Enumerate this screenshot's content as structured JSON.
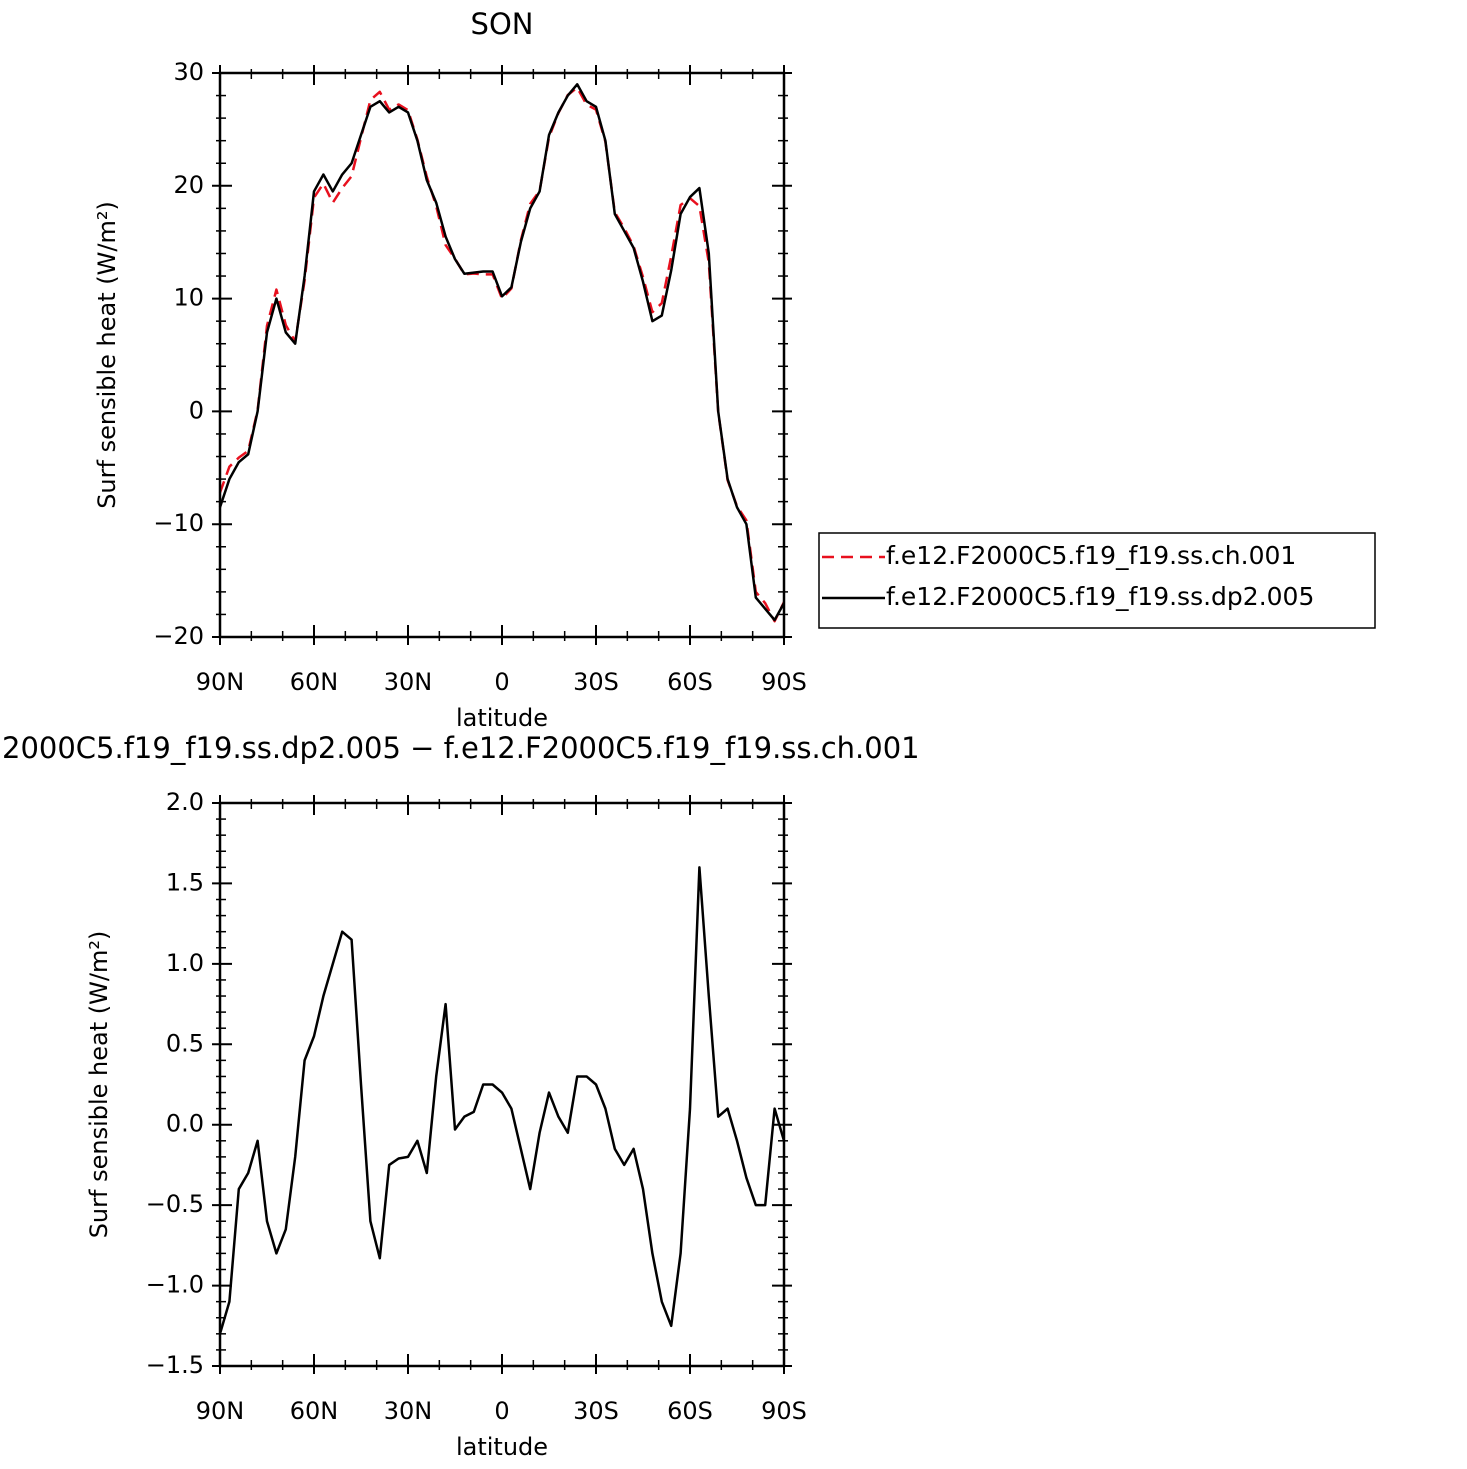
{
  "chart_data": [
    {
      "type": "line",
      "title": "SON",
      "xlabel": "latitude",
      "ylabel": "Surf sensible heat (W/m²)",
      "x": [
        90,
        87,
        84,
        81,
        78,
        75,
        72,
        69,
        66,
        63,
        60,
        57,
        54,
        51,
        48,
        45,
        42,
        39,
        36,
        33,
        30,
        27,
        24,
        21,
        18,
        15,
        12,
        9,
        6,
        3,
        0,
        -3,
        -6,
        -9,
        -12,
        -15,
        -18,
        -21,
        -24,
        -27,
        -30,
        -33,
        -36,
        -39,
        -42,
        -45,
        -48,
        -51,
        -54,
        -57,
        -60,
        -63,
        -66,
        -69,
        -72,
        -75,
        -78,
        -81,
        -84,
        -87,
        -90
      ],
      "series": [
        {
          "name": "f.e12.F2000C5.f19_f19.ss.ch.001",
          "color": "#e8101e",
          "dash": true,
          "values": [
            -7.2,
            -4.9,
            -4.1,
            -3.5,
            0.1,
            7.6,
            10.8,
            7.65,
            6.2,
            11.6,
            18.95,
            20.2,
            18.5,
            19.8,
            20.85,
            24.25,
            27.6,
            28.33,
            26.75,
            27.21,
            26.7,
            24.1,
            20.8,
            18.2,
            14.75,
            13.53,
            12.15,
            12.22,
            12.15,
            12.15,
            10.0,
            10.9,
            15.15,
            18.4,
            19.55,
            24.3,
            26.45,
            28.05,
            28.7,
            27.2,
            26.75,
            23.9,
            17.65,
            16.25,
            14.65,
            11.9,
            8.8,
            9.6,
            13.75,
            18.3,
            18.9,
            18.2,
            13.2,
            -0.05,
            -6.1,
            -8.4,
            -9.67,
            -16.0,
            -17.0,
            -18.6,
            -16.9
          ]
        },
        {
          "name": "f.e12.F2000C5.f19_f19.ss.dp2.005",
          "color": "#000000",
          "dash": false,
          "values": [
            -8.5,
            -6,
            -4.5,
            -3.8,
            0,
            7,
            10,
            7,
            6,
            12,
            19.5,
            21,
            19.5,
            21,
            22,
            24.5,
            27,
            27.5,
            26.5,
            27,
            26.5,
            24,
            20.5,
            18.5,
            15.5,
            13.5,
            12.2,
            12.3,
            12.4,
            12.4,
            10.2,
            11,
            15,
            18,
            19.5,
            24.5,
            26.5,
            28,
            29,
            27.5,
            27,
            24,
            17.5,
            16,
            14.5,
            11.5,
            8,
            8.5,
            12.5,
            17.5,
            19,
            19.8,
            14,
            0,
            -6,
            -8.5,
            -10,
            -16.5,
            -17.5,
            -18.5,
            -17
          ]
        }
      ],
      "xlim": [
        90,
        -90
      ],
      "xticks": [
        {
          "value": 90,
          "label": "90N"
        },
        {
          "value": 60,
          "label": "60N"
        },
        {
          "value": 30,
          "label": "30N"
        },
        0,
        {
          "value": -30,
          "label": "30S"
        },
        {
          "value": -60,
          "label": "60S"
        },
        {
          "value": -90,
          "label": "90S"
        }
      ],
      "ylim": [
        -20,
        30
      ],
      "yticks": [
        {
          "value": -20,
          "label": "−20"
        },
        {
          "value": -10,
          "label": "−10"
        },
        0,
        10,
        20,
        30
      ],
      "legend": "right"
    },
    {
      "type": "line",
      "title": "2000C5.f19_f19.ss.dp2.005 − f.e12.F2000C5.f19_f19.ss.ch.001",
      "xlabel": "latitude",
      "ylabel": "Surf sensible heat (W/m²)",
      "x": [
        90,
        87,
        84,
        81,
        78,
        75,
        72,
        69,
        66,
        63,
        60,
        57,
        54,
        51,
        48,
        45,
        42,
        39,
        36,
        33,
        30,
        27,
        24,
        21,
        18,
        15,
        12,
        9,
        6,
        3,
        0,
        -3,
        -6,
        -9,
        -12,
        -15,
        -18,
        -21,
        -24,
        -27,
        -30,
        -33,
        -36,
        -39,
        -42,
        -45,
        -48,
        -51,
        -54,
        -57,
        -60,
        -63,
        -66,
        -69,
        -72,
        -75,
        -78,
        -81,
        -84,
        -87,
        -90
      ],
      "series": [
        {
          "color": "#000000",
          "dash": false,
          "values": [
            -1.3,
            -1.1,
            -0.4,
            -0.3,
            -0.1,
            -0.6,
            -0.8,
            -0.65,
            -0.2,
            0.4,
            0.55,
            0.8,
            1.0,
            1.2,
            1.15,
            0.25,
            -0.6,
            -0.83,
            -0.25,
            -0.21,
            -0.2,
            -0.1,
            -0.3,
            0.3,
            0.75,
            -0.03,
            0.05,
            0.08,
            0.25,
            0.25,
            0.2,
            0.1,
            -0.15,
            -0.4,
            -0.05,
            0.2,
            0.05,
            -0.05,
            0.3,
            0.3,
            0.25,
            0.1,
            -0.15,
            -0.25,
            -0.15,
            -0.4,
            -0.8,
            -1.1,
            -1.25,
            -0.8,
            0.1,
            1.6,
            0.8,
            0.05,
            0.1,
            -0.1,
            -0.33,
            -0.5,
            -0.5,
            0.1,
            -0.1
          ]
        }
      ],
      "xlim": [
        90,
        -90
      ],
      "xticks": [
        {
          "value": 90,
          "label": "90N"
        },
        {
          "value": 60,
          "label": "60N"
        },
        {
          "value": 30,
          "label": "30N"
        },
        0,
        {
          "value": -30,
          "label": "30S"
        },
        {
          "value": -60,
          "label": "60S"
        },
        {
          "value": -90,
          "label": "90S"
        }
      ],
      "ylim": [
        -1.5,
        2.0
      ],
      "yticks": [
        {
          "value": -1.5,
          "label": "−1.5"
        },
        {
          "value": -1.0,
          "label": "−1.0"
        },
        {
          "value": -0.5,
          "label": "−0.5"
        },
        {
          "value": 0,
          "label": "0.0"
        },
        0.5,
        {
          "value": 1.0,
          "label": "1.0"
        },
        1.5,
        {
          "value": 2.0,
          "label": "2.0"
        }
      ]
    }
  ]
}
